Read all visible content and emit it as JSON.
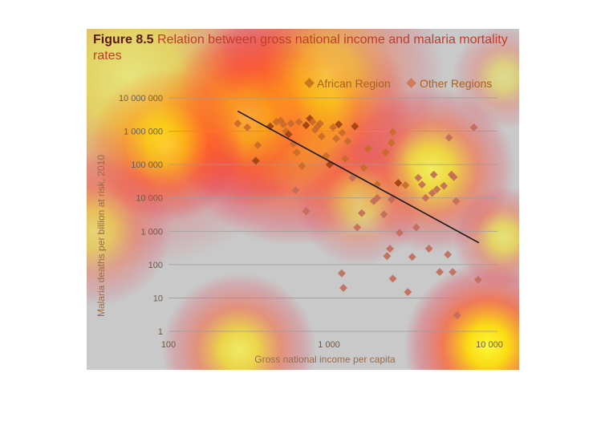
{
  "figure": {
    "number": "Figure 8.5",
    "title": "Relation between gross national income and malaria mortality rates"
  },
  "colors": {
    "african": "#a04010",
    "african_light": "#c86a2a",
    "other": "#c26a5a",
    "trend": "#1a1a1a",
    "gridline": "#9a9a9a"
  },
  "chart_data": {
    "type": "scatter",
    "title": "Figure 8.5 Relation between gross national income and malaria mortality rates",
    "xlabel": "Gross national income per capita",
    "ylabel": "Malaria deaths per billion at risk, 2010",
    "x_scale": "log",
    "y_scale": "log",
    "xlim": [
      100,
      10000
    ],
    "ylim": [
      1,
      10000000
    ],
    "x_ticks": [
      {
        "value": 100,
        "label": "100"
      },
      {
        "value": 1000,
        "label": "1 000"
      },
      {
        "value": 10000,
        "label": "10 000"
      }
    ],
    "y_ticks": [
      {
        "value": 1,
        "label": "1"
      },
      {
        "value": 10,
        "label": "10"
      },
      {
        "value": 100,
        "label": "100"
      },
      {
        "value": 1000,
        "label": "1 000"
      },
      {
        "value": 10000,
        "label": "10 000"
      },
      {
        "value": 100000,
        "label": "100 000"
      },
      {
        "value": 1000000,
        "label": "1 000 000"
      },
      {
        "value": 10000000,
        "label": "10 000 000"
      }
    ],
    "grid": "horizontal",
    "legend": {
      "placement": "top-right",
      "entries": [
        {
          "label": "African Region",
          "series": "african"
        },
        {
          "label": "Other Regions",
          "series": "other"
        }
      ]
    },
    "trend_line": {
      "points": [
        [
          270,
          4000000
        ],
        [
          8600,
          450
        ]
      ]
    },
    "series": [
      {
        "name": "African Region",
        "key": "african",
        "points": [
          [
            270,
            1700000
          ],
          [
            310,
            1300000
          ],
          [
            350,
            130000
          ],
          [
            360,
            380000
          ],
          [
            430,
            1400000
          ],
          [
            470,
            1900000
          ],
          [
            500,
            2100000
          ],
          [
            520,
            1600000
          ],
          [
            540,
            1000000
          ],
          [
            560,
            800000
          ],
          [
            580,
            1700000
          ],
          [
            600,
            420000
          ],
          [
            630,
            230000
          ],
          [
            650,
            1900000
          ],
          [
            680,
            90000
          ],
          [
            720,
            1500000
          ],
          [
            760,
            2400000
          ],
          [
            790,
            1900000
          ],
          [
            820,
            1100000
          ],
          [
            850,
            1400000
          ],
          [
            880,
            1700000
          ],
          [
            900,
            700000
          ],
          [
            960,
            180000
          ],
          [
            1010,
            100000
          ],
          [
            1060,
            1300000
          ],
          [
            1110,
            600000
          ],
          [
            1150,
            1600000
          ],
          [
            1210,
            900000
          ],
          [
            1260,
            150000
          ],
          [
            1310,
            500000
          ],
          [
            1450,
            1400000
          ],
          [
            1650,
            80000
          ],
          [
            1750,
            300000
          ],
          [
            2000,
            25000
          ],
          [
            2250,
            230000
          ],
          [
            2450,
            450000
          ],
          [
            2500,
            950000
          ],
          [
            2700,
            28000
          ],
          [
            3000,
            24000
          ]
        ]
      },
      {
        "name": "Other Regions",
        "key": "other",
        "points": [
          [
            620,
            17000
          ],
          [
            720,
            4000
          ],
          [
            1200,
            55
          ],
          [
            1230,
            20
          ],
          [
            1400,
            40000
          ],
          [
            1500,
            1300
          ],
          [
            1600,
            3500
          ],
          [
            1900,
            8000
          ],
          [
            2000,
            10000
          ],
          [
            2200,
            3200
          ],
          [
            2300,
            180
          ],
          [
            2400,
            300
          ],
          [
            2450,
            9000
          ],
          [
            2500,
            38
          ],
          [
            2750,
            900
          ],
          [
            3100,
            15
          ],
          [
            3300,
            170
          ],
          [
            3500,
            1300
          ],
          [
            3600,
            40000
          ],
          [
            3800,
            25000
          ],
          [
            4000,
            10000
          ],
          [
            4200,
            300
          ],
          [
            4400,
            14000
          ],
          [
            4500,
            50000
          ],
          [
            4700,
            18000
          ],
          [
            4900,
            60
          ],
          [
            5200,
            23000
          ],
          [
            5500,
            200
          ],
          [
            5600,
            640000
          ],
          [
            5800,
            50000
          ],
          [
            5900,
            60
          ],
          [
            6000,
            42000
          ],
          [
            6200,
            8000
          ],
          [
            6300,
            3
          ],
          [
            8000,
            1300000
          ],
          [
            8500,
            35
          ]
        ]
      }
    ]
  }
}
